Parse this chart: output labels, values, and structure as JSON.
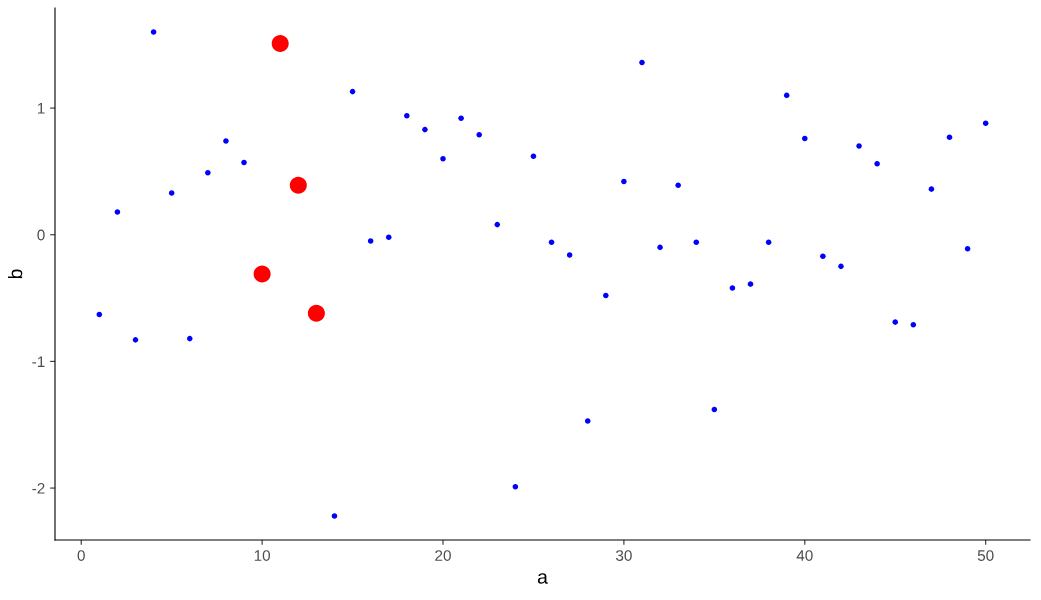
{
  "chart_data": {
    "type": "scatter",
    "xlabel": "a",
    "ylabel": "b",
    "xlim": [
      -1.45,
      52.45
    ],
    "xticks": [
      0,
      10,
      20,
      30,
      40,
      50
    ],
    "ylim": [
      -2.41,
      1.79
    ],
    "yticks": [
      -2,
      -1,
      0,
      1
    ],
    "grid": false,
    "marker": "circle",
    "series": [
      {
        "color": "#0000ff",
        "x": [
          1,
          2,
          3,
          4,
          5,
          6,
          7,
          8,
          9,
          14,
          15,
          16,
          17,
          18,
          19,
          20,
          21,
          22,
          23,
          24,
          25,
          26,
          27,
          28,
          29,
          30,
          31,
          32,
          33,
          34,
          35,
          36,
          37,
          38,
          39,
          40,
          41,
          42,
          43,
          44,
          45,
          46,
          47,
          48,
          49,
          50
        ],
        "values": [
          -0.63,
          0.18,
          -0.83,
          1.6,
          0.33,
          -0.82,
          0.49,
          0.74,
          0.57,
          -2.22,
          1.13,
          -0.05,
          -0.02,
          0.94,
          0.83,
          0.6,
          0.92,
          0.79,
          0.08,
          -1.99,
          0.62,
          -0.06,
          -0.16,
          -1.47,
          -0.48,
          0.42,
          1.36,
          -0.1,
          0.39,
          -0.06,
          -1.38,
          -0.42,
          -0.39,
          -0.06,
          1.1,
          0.76,
          -0.17,
          -0.25,
          0.7,
          0.56,
          -0.69,
          -0.71,
          0.36,
          0.77,
          -0.11,
          0.88
        ]
      },
      {
        "color": "#ff0000",
        "x": [
          10,
          11,
          12,
          13
        ],
        "values": [
          -0.31,
          1.51,
          0.39,
          -0.62
        ]
      }
    ]
  }
}
